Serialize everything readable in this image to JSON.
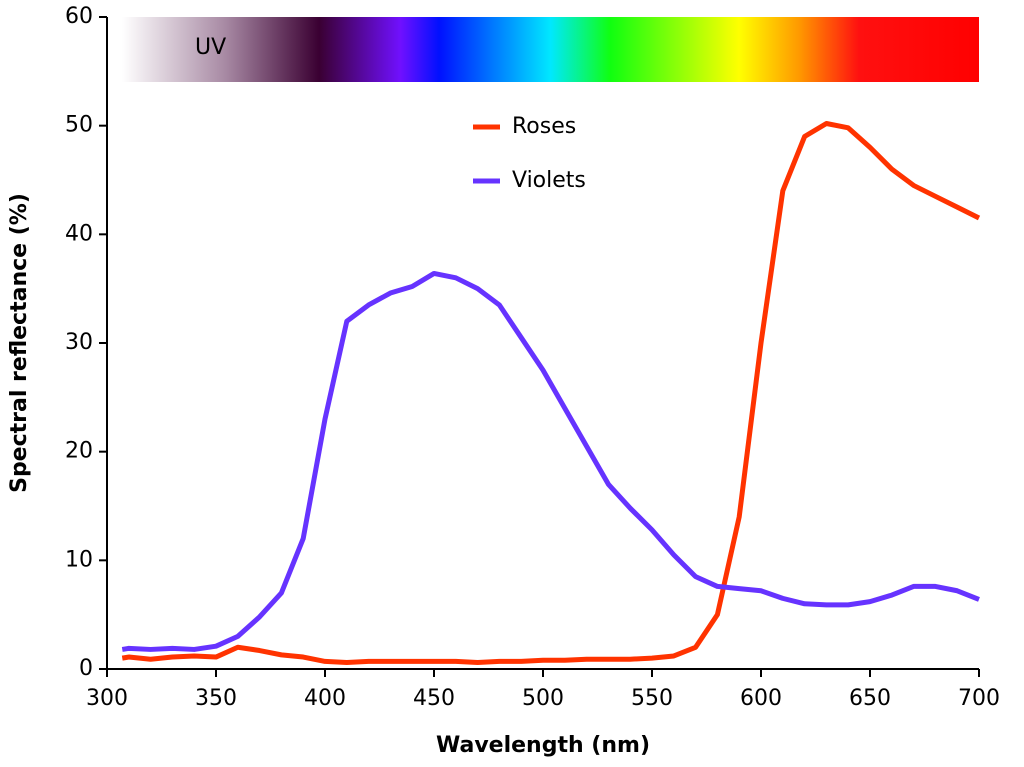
{
  "chart_data": {
    "type": "line",
    "xlabel": "Wavelength (nm)",
    "ylabel": "Spectral reflectance (%)",
    "annotation": "UV",
    "x": [
      307,
      310,
      320,
      330,
      340,
      350,
      360,
      370,
      380,
      390,
      400,
      410,
      420,
      430,
      440,
      450,
      460,
      470,
      480,
      490,
      500,
      510,
      520,
      530,
      540,
      550,
      560,
      570,
      580,
      590,
      600,
      610,
      620,
      630,
      640,
      650,
      660,
      670,
      680,
      690,
      700
    ],
    "series": [
      {
        "name": "Roses",
        "color": "#ff3300",
        "values": [
          1,
          1.1,
          0.9,
          1.1,
          1.2,
          1.1,
          2,
          1.7,
          1.3,
          1.1,
          0.7,
          0.6,
          0.7,
          0.7,
          0.7,
          0.7,
          0.7,
          0.6,
          0.7,
          0.7,
          0.8,
          0.8,
          0.9,
          0.9,
          0.9,
          1,
          1.2,
          2,
          5,
          14,
          30,
          44,
          49,
          50.2,
          49.8,
          48,
          46,
          44.5,
          43.5,
          42.5,
          41.5
        ]
      },
      {
        "name": "Violets",
        "color": "#6633ff",
        "values": [
          1.8,
          1.9,
          1.8,
          1.9,
          1.8,
          2.1,
          3,
          4.8,
          7,
          12,
          23,
          32,
          33.5,
          34.6,
          35.2,
          36.4,
          36,
          35,
          33.5,
          30.5,
          27.5,
          24,
          20.5,
          17,
          14.8,
          12.8,
          10.5,
          8.5,
          7.6,
          7.4,
          7.2,
          6.5,
          6,
          5.9,
          5.9,
          6.2,
          6.8,
          7.6,
          7.6,
          7.2,
          6.4
        ]
      }
    ],
    "xlim": [
      300,
      700
    ],
    "xticks": [
      300,
      350,
      400,
      450,
      500,
      550,
      600,
      650,
      700
    ],
    "ylim": [
      0,
      60
    ],
    "yticks": [
      0,
      10,
      20,
      30,
      40,
      50,
      60
    ],
    "grid": false
  }
}
